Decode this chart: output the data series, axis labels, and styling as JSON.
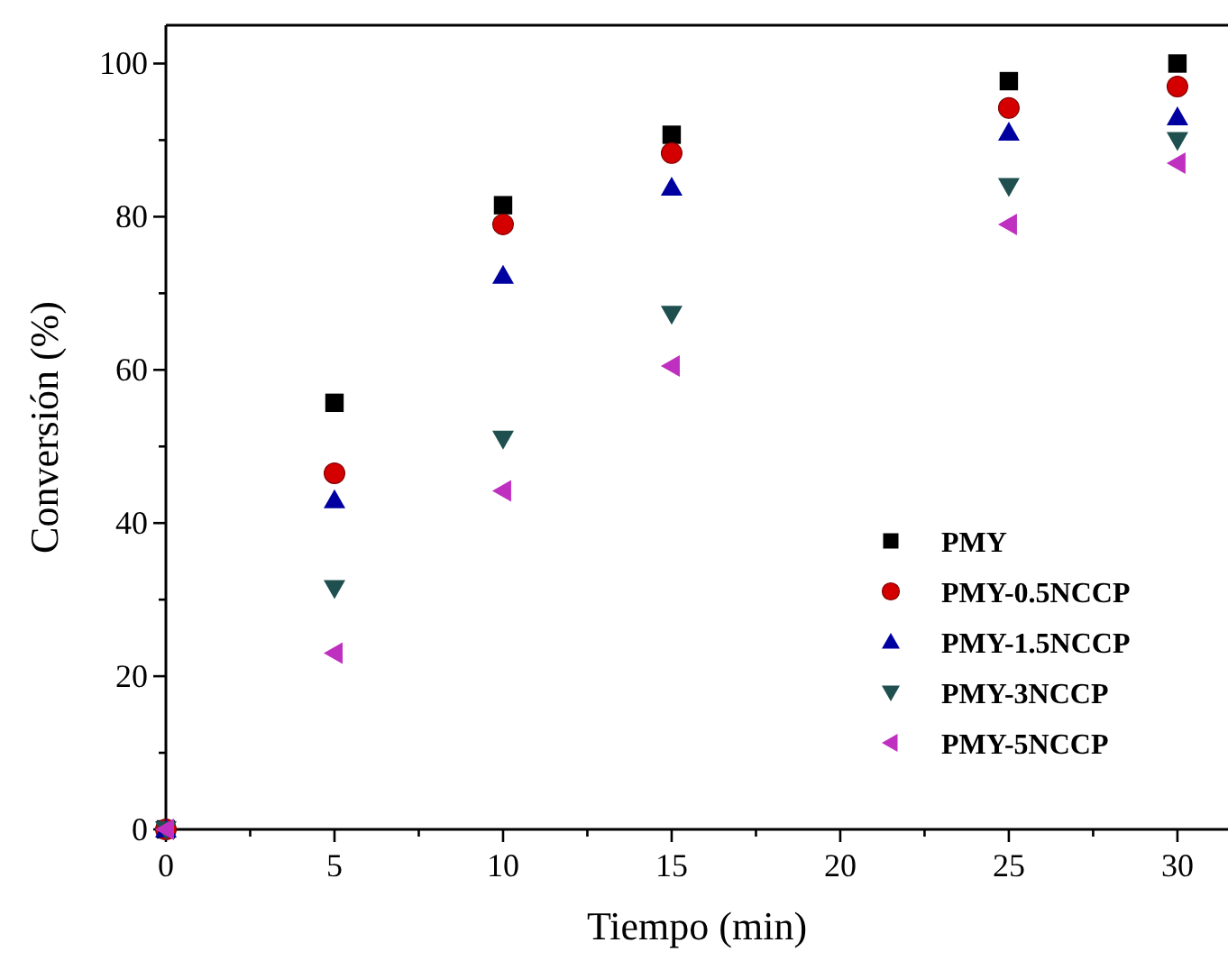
{
  "chart_data": {
    "type": "scatter",
    "xlabel": "Tiempo (min)",
    "ylabel": "Conversión (%)",
    "x": [
      0,
      5,
      10,
      15,
      25,
      30
    ],
    "xlim": [
      0,
      31.5
    ],
    "ylim": [
      0,
      105
    ],
    "xticks": [
      0,
      {
        "value": 2.5,
        "label": null
      },
      5,
      {
        "value": 7.5,
        "label": null
      },
      10,
      {
        "value": 12.5,
        "label": null
      },
      15,
      {
        "value": 17.5,
        "label": null
      },
      20,
      {
        "value": 22.5,
        "label": null
      },
      25,
      {
        "value": 27.5,
        "label": null
      },
      30
    ],
    "yticks": [
      0,
      {
        "value": 10,
        "label": null
      },
      20,
      {
        "value": 30,
        "label": null
      },
      40,
      {
        "value": 50,
        "label": null
      },
      60,
      {
        "value": 70,
        "label": null
      },
      80,
      {
        "value": 90,
        "label": null
      },
      100
    ],
    "grid": false,
    "legend": "bottom right",
    "series": [
      {
        "name": "PMY",
        "color": "#000000",
        "marker": "square",
        "values": [
          0,
          55.7,
          81.5,
          90.7,
          97.7,
          100
        ]
      },
      {
        "name": "PMY-0.5NCCP",
        "color": "#d40000",
        "marker": "circle",
        "values": [
          0,
          46.5,
          79,
          88.3,
          94.2,
          97
        ]
      },
      {
        "name": "PMY-1.5NCCP",
        "color": "#0000a0",
        "marker": "triangle",
        "values": [
          0,
          43,
          72.3,
          83.8,
          91,
          93
        ]
      },
      {
        "name": "PMY-3NCCP",
        "color": "#1f4f4f",
        "marker": "triangle-down",
        "values": [
          0,
          31.5,
          51,
          67.3,
          84,
          90
        ]
      },
      {
        "name": "PMY-5NCCP",
        "color": "#c030c0",
        "marker": "triangle-left",
        "values": [
          0,
          23,
          44.2,
          60.5,
          79,
          87
        ]
      }
    ]
  }
}
